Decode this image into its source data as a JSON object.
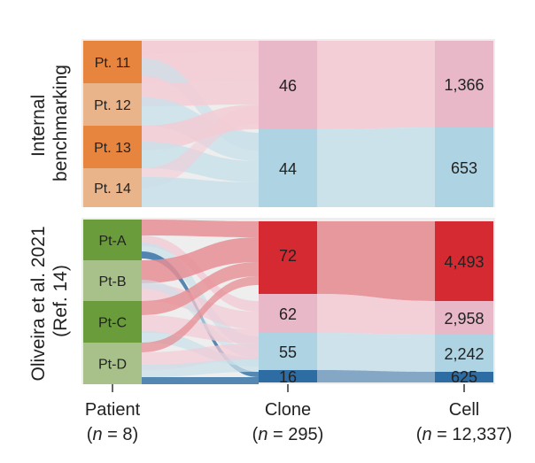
{
  "panels": {
    "top": {
      "label_lines": [
        "Internal",
        "benchmarking"
      ],
      "patients": [
        {
          "label": "Pt. 11",
          "color": "#E7853F"
        },
        {
          "label": "Pt. 12",
          "color": "#EAB48A"
        },
        {
          "label": "Pt. 13",
          "color": "#E7853F"
        },
        {
          "label": "Pt. 14",
          "color": "#EAB48A"
        }
      ],
      "clones": [
        {
          "value": "46",
          "color": "#E9B8C8"
        },
        {
          "value": "44",
          "color": "#AED3E2"
        }
      ],
      "cells": [
        {
          "value": "1,366",
          "color": "#E9B8C8"
        },
        {
          "value": "653",
          "color": "#AED3E2"
        }
      ]
    },
    "bottom": {
      "label_lines": [
        "Oliveira et al. 2021",
        "(Ref. 14)"
      ],
      "patients": [
        {
          "label": "Pt-A",
          "color": "#6A9C3B"
        },
        {
          "label": "Pt-B",
          "color": "#A8C18A"
        },
        {
          "label": "Pt-C",
          "color": "#6A9C3B"
        },
        {
          "label": "Pt-D",
          "color": "#A8C18A"
        }
      ],
      "clones": [
        {
          "value": "72",
          "color": "#D52A32"
        },
        {
          "value": "62",
          "color": "#E9B8C8"
        },
        {
          "value": "55",
          "color": "#AED3E2"
        },
        {
          "value": "16",
          "color": "#2E6DA4"
        }
      ],
      "cells": [
        {
          "value": "4,493",
          "color": "#D52A32"
        },
        {
          "value": "2,958",
          "color": "#E9B8C8"
        },
        {
          "value": "2,242",
          "color": "#AED3E2"
        },
        {
          "value": "625",
          "color": "#2E6DA4"
        }
      ]
    }
  },
  "axes": [
    {
      "title": "Patient",
      "n_value": "8"
    },
    {
      "title": "Clone",
      "n_value": "295"
    },
    {
      "title": "Cell",
      "n_value": "12,337"
    }
  ],
  "n_symbol": "n",
  "colors": {
    "panel_bg": "#EEEEEE",
    "pink_flow": "#F3CBD5",
    "blue_flow": "#C9E0EA",
    "red_flow": "#E68E94",
    "navy_flow": "#2E6DA4"
  }
}
